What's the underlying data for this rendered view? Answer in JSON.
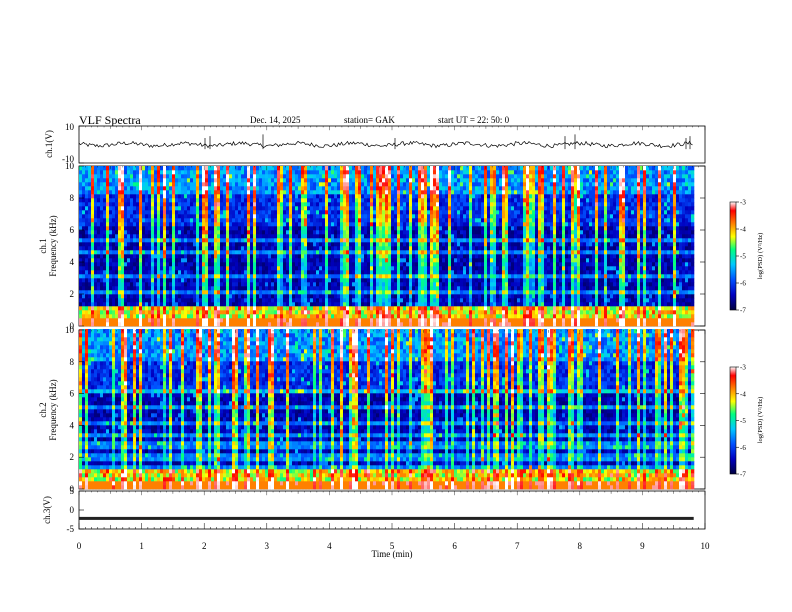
{
  "header": {
    "title": "VLF  Spectra",
    "date": "Dec. 14,  2025",
    "station": "station= GAK",
    "start": "start  UT  =    22: 50: 0"
  },
  "chart_data": {
    "type": "heatmap",
    "x_axis": {
      "label": "Time  (min)",
      "range": [
        0,
        10
      ],
      "ticks": [
        0,
        1,
        2,
        3,
        4,
        5,
        6,
        7,
        8,
        9,
        10
      ],
      "data_extent_min": 9.82
    },
    "panels": [
      {
        "id": "ch1-waveform",
        "ylabel": "ch.1(V)",
        "type": "line",
        "ylim": [
          -10,
          10
        ],
        "yticks": [
          10,
          -10
        ],
        "baseline": 0
      },
      {
        "id": "ch1-spectrogram",
        "ylabel_lines": [
          "ch.1",
          "Frequency  (kHz)"
        ],
        "type": "heatmap",
        "ylim": [
          0,
          10
        ],
        "yticks": [
          0,
          2,
          4,
          6,
          8,
          10
        ],
        "colorbar": {
          "label": "log(PSD) (V²/Hz)",
          "range": [
            -7,
            -3
          ],
          "ticks": [
            -3,
            -4,
            -5,
            -6,
            -7
          ]
        }
      },
      {
        "id": "ch2-spectrogram",
        "ylabel_lines": [
          "ch.2",
          "Frequency  (kHz)"
        ],
        "type": "heatmap",
        "ylim": [
          0,
          10
        ],
        "yticks": [
          0,
          2,
          4,
          6,
          8,
          10
        ],
        "colorbar": {
          "label": "log(PSD) (V²/Hz)",
          "range": [
            -7,
            -3
          ],
          "ticks": [
            -3,
            -4,
            -5,
            -6,
            -7
          ]
        }
      },
      {
        "id": "ch3-waveform",
        "ylabel": "ch.3(V)",
        "type": "line",
        "ylim": [
          -5,
          5
        ],
        "yticks": [
          5,
          0,
          -5
        ],
        "baseline": -2.2
      }
    ],
    "colormap": [
      "#000040",
      "#0000c0",
      "#0050ff",
      "#00c8ff",
      "#00ff80",
      "#ffff00",
      "#ff8000",
      "#ff0000",
      "#ffffff"
    ]
  }
}
